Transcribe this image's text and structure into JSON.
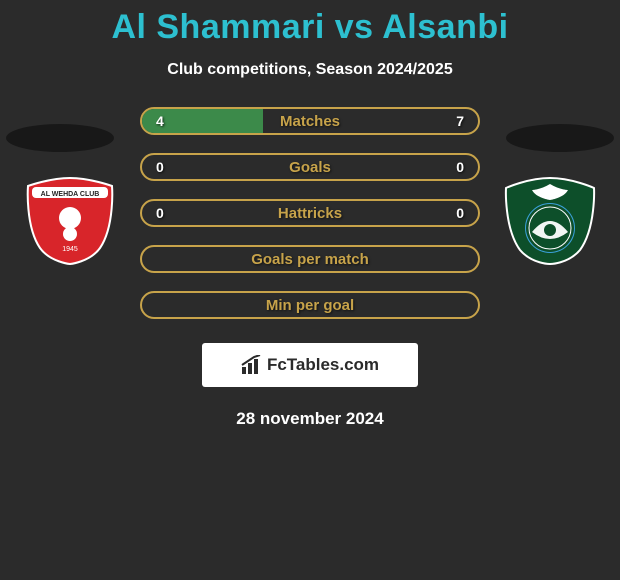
{
  "header": {
    "title_player1": "Al Shammari",
    "title_vs": " vs ",
    "title_player2": "Alsanbi",
    "subtitle": "Club competitions, Season 2024/2025",
    "accent_color": "#2dc0d0"
  },
  "colors": {
    "background": "#2b2b2b",
    "row_border": "#c7a34a",
    "row_label": "#c7a34a",
    "fill_left": "#3c8a4a",
    "shadow": "#181818"
  },
  "rows": [
    {
      "label": "Matches",
      "left": "4",
      "right": "7",
      "left_pct": 36,
      "right_pct": 0
    },
    {
      "label": "Goals",
      "left": "0",
      "right": "0",
      "left_pct": 0,
      "right_pct": 0
    },
    {
      "label": "Hattricks",
      "left": "0",
      "right": "0",
      "left_pct": 0,
      "right_pct": 0
    },
    {
      "label": "Goals per match",
      "left": "",
      "right": "",
      "left_pct": 0,
      "right_pct": 0
    },
    {
      "label": "Min per goal",
      "left": "",
      "right": "",
      "left_pct": 0,
      "right_pct": 0
    }
  ],
  "badges": {
    "left": {
      "primary": "#d8252a",
      "secondary": "#ffffff",
      "banner_text": "AL WEHDA CLUB"
    },
    "right": {
      "primary": "#0d4f2a",
      "secondary": "#ffffff"
    }
  },
  "footer": {
    "watermark": "FcTables.com",
    "date": "28 november 2024"
  }
}
